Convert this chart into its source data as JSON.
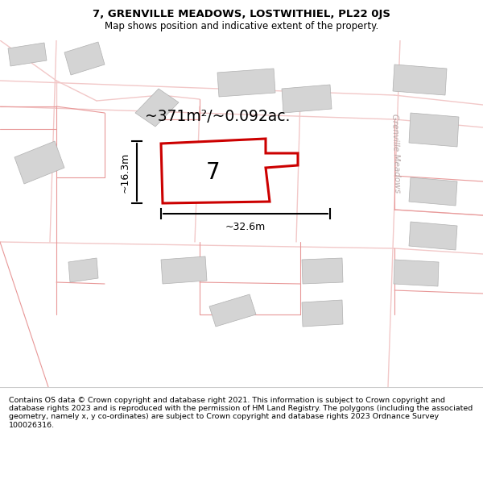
{
  "title": "7, GRENVILLE MEADOWS, LOSTWITHIEL, PL22 0JS",
  "subtitle": "Map shows position and indicative extent of the property.",
  "footer": "Contains OS data © Crown copyright and database right 2021. This information is subject to Crown copyright and database rights 2023 and is reproduced with the permission of HM Land Registry. The polygons (including the associated geometry, namely x, y co-ordinates) are subject to Crown copyright and database rights 2023 Ordnance Survey 100026316.",
  "area_label": "~371m²/~0.092ac.",
  "plot_number": "7",
  "width_label": "~32.6m",
  "height_label": "~16.3m",
  "map_bg": "#ffffff",
  "plot_fill": "#ffffff",
  "plot_border": "#cc0000",
  "building_fill": "#d4d4d4",
  "building_edge": "#b0b0b0",
  "road_color": "#f2c8c8",
  "boundary_color": "#e89898",
  "street_label": "Grenville Meadows",
  "street_label_color": "#b8a8a8",
  "title_fontsize": 9.5,
  "subtitle_fontsize": 8.5,
  "footer_fontsize": 6.8,
  "area_fontsize": 13.5,
  "plot_num_fontsize": 20,
  "dim_fontsize": 9
}
